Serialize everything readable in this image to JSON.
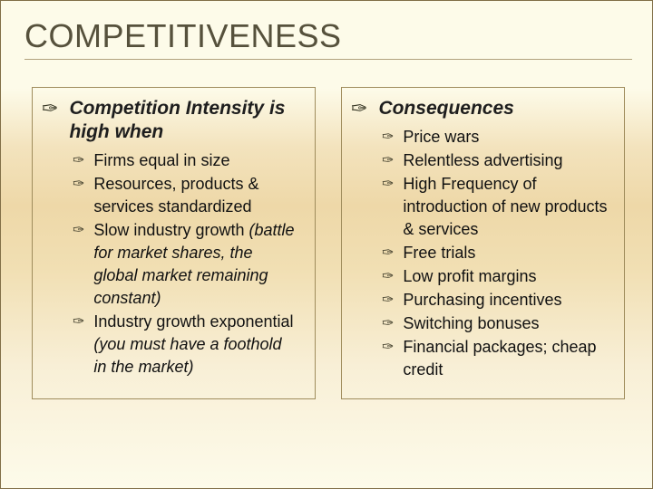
{
  "title": "COMPETITIVENESS",
  "bullet_glyph": "✑",
  "left": {
    "heading": "Competition Intensity is high when",
    "items": [
      {
        "main": "Firms equal in size",
        "paren": ""
      },
      {
        "main": "Resources, products & services standardized",
        "paren": ""
      },
      {
        "main": "Slow industry growth",
        "paren": " (battle for market shares, the global market remaining constant)"
      },
      {
        "main": "Industry growth exponential",
        "paren": " (you must have a foothold in the market)"
      }
    ]
  },
  "right": {
    "heading": "Consequences",
    "items": [
      {
        "main": "Price wars",
        "paren": ""
      },
      {
        "main": "Relentless advertising",
        "paren": ""
      },
      {
        "main": "High Frequency of introduction of new products & services",
        "paren": ""
      },
      {
        "main": "Free trials",
        "paren": ""
      },
      {
        "main": "Low profit margins",
        "paren": ""
      },
      {
        "main": "Purchasing incentives",
        "paren": ""
      },
      {
        "main": "Switching bonuses",
        "paren": ""
      },
      {
        "main": "Financial packages; cheap credit",
        "paren": ""
      }
    ]
  },
  "colors": {
    "title": "#56513c",
    "border": "#9f8c5c",
    "rule": "#b2a27d",
    "text": "#111"
  }
}
